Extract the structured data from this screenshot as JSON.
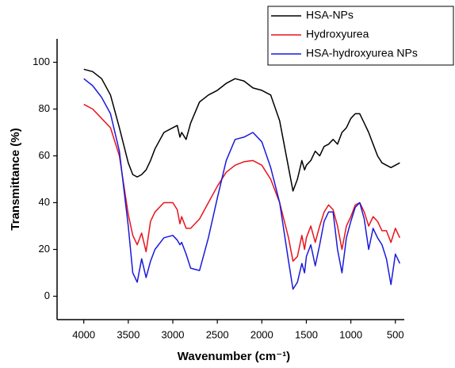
{
  "chart_data": {
    "type": "line",
    "xlabel": "Wavenumber (cm⁻¹)",
    "ylabel": "Transmittance (%)",
    "x": [
      4000,
      3900,
      3800,
      3700,
      3600,
      3500,
      3450,
      3400,
      3350,
      3300,
      3250,
      3200,
      3100,
      3000,
      2950,
      2920,
      2900,
      2850,
      2800,
      2700,
      2600,
      2500,
      2400,
      2300,
      2200,
      2100,
      2000,
      1900,
      1800,
      1700,
      1650,
      1600,
      1550,
      1520,
      1500,
      1450,
      1400,
      1350,
      1300,
      1250,
      1200,
      1150,
      1100,
      1050,
      1000,
      950,
      900,
      850,
      800,
      750,
      700,
      650,
      600,
      550,
      500,
      450
    ],
    "series": [
      {
        "name": "HSA-NPs",
        "color": "#000000",
        "values": [
          97,
          96,
          93,
          86,
          72,
          57,
          52,
          51,
          52,
          54,
          58,
          63,
          70,
          72,
          73,
          68,
          70,
          67,
          74,
          83,
          86,
          88,
          91,
          93,
          92,
          89,
          88,
          86,
          75,
          55,
          45,
          50,
          58,
          54,
          56,
          58,
          62,
          60,
          64,
          65,
          67,
          65,
          70,
          72,
          76,
          78,
          78,
          74,
          70,
          65,
          60,
          57,
          56,
          55,
          56,
          57
        ]
      },
      {
        "name": "Hydroxyurea",
        "color": "#e8141b",
        "values": [
          82,
          80,
          76,
          72,
          60,
          35,
          26,
          22,
          27,
          19,
          32,
          36,
          40,
          40,
          37,
          31,
          34,
          29,
          29,
          33,
          40,
          47,
          53,
          56,
          57.5,
          58,
          56,
          50,
          40,
          25,
          15,
          17,
          26,
          20,
          25,
          30,
          23,
          30,
          36,
          39,
          37,
          30,
          20,
          30,
          34,
          39,
          40,
          36,
          30,
          34,
          32,
          28,
          28,
          23,
          29,
          25
        ]
      },
      {
        "name": "HSA-hydroxyurea NPs",
        "color": "#1a1adb",
        "values": [
          93,
          90,
          85,
          78,
          62,
          30,
          10,
          6,
          16,
          8,
          15,
          20,
          25,
          26,
          24,
          22,
          23,
          18,
          12,
          11,
          25,
          42,
          58,
          67,
          68,
          70,
          66,
          55,
          40,
          15,
          3,
          6,
          14,
          10,
          17,
          22,
          13,
          22,
          32,
          36,
          36,
          20,
          10,
          25,
          32,
          38,
          40,
          33,
          20,
          29,
          25,
          22,
          16,
          5,
          18,
          14
        ]
      }
    ],
    "xlim": [
      4300,
      400
    ],
    "ylim": [
      -10,
      110
    ],
    "xticks": [
      4000,
      3500,
      3000,
      2500,
      2000,
      1500,
      1000,
      500
    ],
    "yticks": [
      0,
      20,
      40,
      60,
      80,
      100
    ],
    "legend": "upper right"
  }
}
